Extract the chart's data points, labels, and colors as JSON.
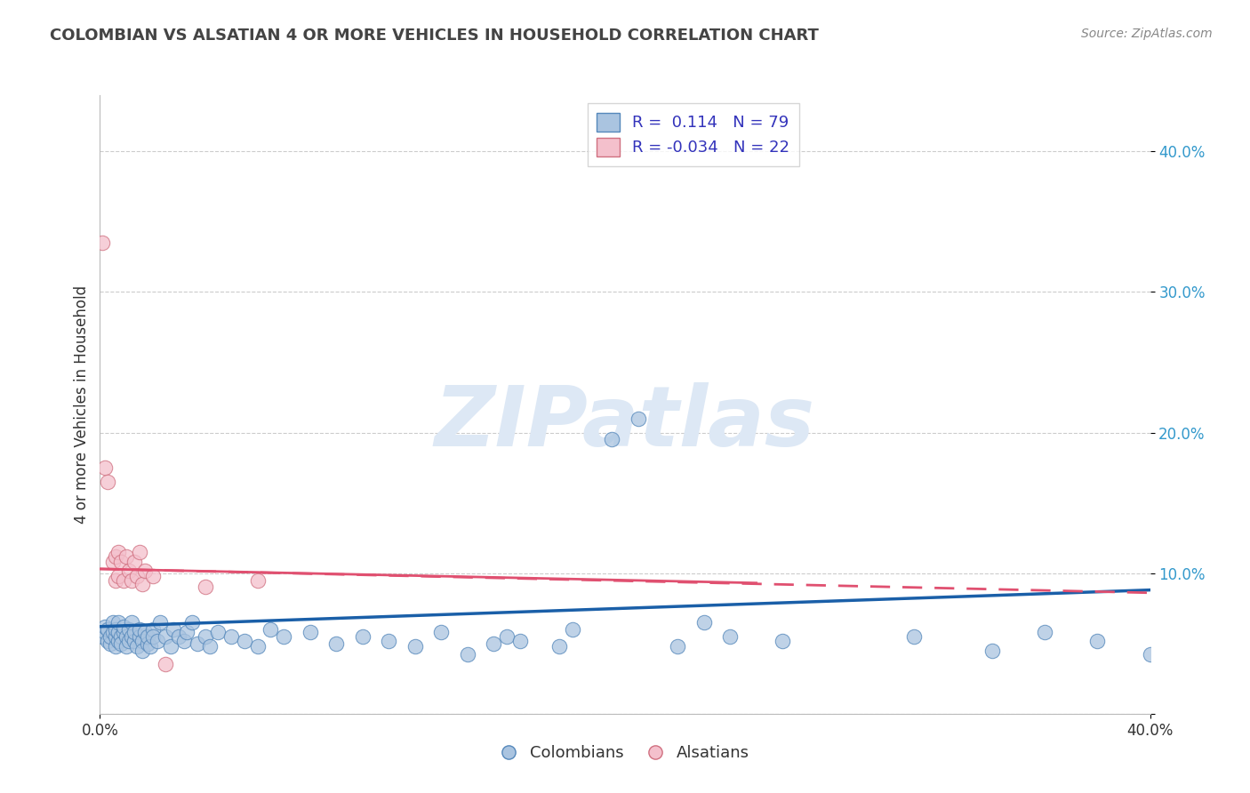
{
  "title": "COLOMBIAN VS ALSATIAN 4 OR MORE VEHICLES IN HOUSEHOLD CORRELATION CHART",
  "source": "Source: ZipAtlas.com",
  "ylabel": "4 or more Vehicles in Household",
  "ytick_vals": [
    0.0,
    0.1,
    0.2,
    0.3,
    0.4
  ],
  "ytick_labels": [
    "",
    "10.0%",
    "20.0%",
    "30.0%",
    "40.0%"
  ],
  "xtick_vals": [
    0.0,
    0.4
  ],
  "xtick_labels": [
    "0.0%",
    "40.0%"
  ],
  "xlim": [
    0.0,
    0.4
  ],
  "ylim": [
    0.0,
    0.44
  ],
  "R_colombian": 0.114,
  "N_colombian": 79,
  "R_alsatian": -0.034,
  "N_alsatian": 22,
  "watermark": "ZIPatlas",
  "legend_labels": [
    "Colombians",
    "Alsatians"
  ],
  "col_line_x": [
    0.0,
    0.4
  ],
  "col_line_y": [
    0.062,
    0.088
  ],
  "als_line_x": [
    0.0,
    0.4
  ],
  "als_line_y": [
    0.103,
    0.086
  ],
  "scatter_colombian": [
    [
      0.001,
      0.055
    ],
    [
      0.002,
      0.058
    ],
    [
      0.002,
      0.062
    ],
    [
      0.003,
      0.052
    ],
    [
      0.003,
      0.06
    ],
    [
      0.004,
      0.05
    ],
    [
      0.004,
      0.055
    ],
    [
      0.005,
      0.058
    ],
    [
      0.005,
      0.065
    ],
    [
      0.006,
      0.048
    ],
    [
      0.006,
      0.055
    ],
    [
      0.006,
      0.06
    ],
    [
      0.007,
      0.052
    ],
    [
      0.007,
      0.058
    ],
    [
      0.007,
      0.065
    ],
    [
      0.008,
      0.055
    ],
    [
      0.008,
      0.05
    ],
    [
      0.009,
      0.058
    ],
    [
      0.009,
      0.062
    ],
    [
      0.01,
      0.055
    ],
    [
      0.01,
      0.048
    ],
    [
      0.011,
      0.052
    ],
    [
      0.011,
      0.06
    ],
    [
      0.012,
      0.055
    ],
    [
      0.012,
      0.065
    ],
    [
      0.013,
      0.052
    ],
    [
      0.013,
      0.058
    ],
    [
      0.014,
      0.048
    ],
    [
      0.015,
      0.055
    ],
    [
      0.015,
      0.06
    ],
    [
      0.016,
      0.052
    ],
    [
      0.016,
      0.045
    ],
    [
      0.017,
      0.058
    ],
    [
      0.018,
      0.05
    ],
    [
      0.018,
      0.055
    ],
    [
      0.019,
      0.048
    ],
    [
      0.02,
      0.06
    ],
    [
      0.02,
      0.055
    ],
    [
      0.022,
      0.052
    ],
    [
      0.023,
      0.065
    ],
    [
      0.025,
      0.055
    ],
    [
      0.027,
      0.048
    ],
    [
      0.028,
      0.06
    ],
    [
      0.03,
      0.055
    ],
    [
      0.032,
      0.052
    ],
    [
      0.033,
      0.058
    ],
    [
      0.035,
      0.065
    ],
    [
      0.037,
      0.05
    ],
    [
      0.04,
      0.055
    ],
    [
      0.042,
      0.048
    ],
    [
      0.045,
      0.058
    ],
    [
      0.05,
      0.055
    ],
    [
      0.055,
      0.052
    ],
    [
      0.06,
      0.048
    ],
    [
      0.065,
      0.06
    ],
    [
      0.07,
      0.055
    ],
    [
      0.08,
      0.058
    ],
    [
      0.09,
      0.05
    ],
    [
      0.1,
      0.055
    ],
    [
      0.11,
      0.052
    ],
    [
      0.12,
      0.048
    ],
    [
      0.13,
      0.058
    ],
    [
      0.14,
      0.042
    ],
    [
      0.15,
      0.05
    ],
    [
      0.155,
      0.055
    ],
    [
      0.16,
      0.052
    ],
    [
      0.175,
      0.048
    ],
    [
      0.18,
      0.06
    ],
    [
      0.195,
      0.195
    ],
    [
      0.205,
      0.21
    ],
    [
      0.22,
      0.048
    ],
    [
      0.23,
      0.065
    ],
    [
      0.24,
      0.055
    ],
    [
      0.26,
      0.052
    ],
    [
      0.31,
      0.055
    ],
    [
      0.34,
      0.045
    ],
    [
      0.36,
      0.058
    ],
    [
      0.38,
      0.052
    ],
    [
      0.4,
      0.042
    ]
  ],
  "scatter_alsatian": [
    [
      0.001,
      0.335
    ],
    [
      0.002,
      0.175
    ],
    [
      0.003,
      0.165
    ],
    [
      0.005,
      0.108
    ],
    [
      0.006,
      0.112
    ],
    [
      0.006,
      0.095
    ],
    [
      0.007,
      0.098
    ],
    [
      0.007,
      0.115
    ],
    [
      0.008,
      0.108
    ],
    [
      0.009,
      0.095
    ],
    [
      0.01,
      0.112
    ],
    [
      0.011,
      0.102
    ],
    [
      0.012,
      0.095
    ],
    [
      0.013,
      0.108
    ],
    [
      0.014,
      0.098
    ],
    [
      0.015,
      0.115
    ],
    [
      0.016,
      0.092
    ],
    [
      0.017,
      0.102
    ],
    [
      0.02,
      0.098
    ],
    [
      0.025,
      0.035
    ],
    [
      0.04,
      0.09
    ],
    [
      0.06,
      0.095
    ]
  ],
  "color_colombian": "#aac4e0",
  "color_colombian_edge": "#5588bb",
  "color_colombian_line": "#1a5fa8",
  "color_alsatian": "#f4c0cc",
  "color_alsatian_edge": "#d07080",
  "color_alsatian_line": "#e05070",
  "background_color": "#ffffff",
  "grid_color": "#cccccc",
  "title_color": "#444444",
  "legend_text_color": "#3333bb",
  "watermark_color": "#dde8f5",
  "axis_label_color": "#333333",
  "ytick_color": "#3399cc",
  "source_color": "#888888"
}
